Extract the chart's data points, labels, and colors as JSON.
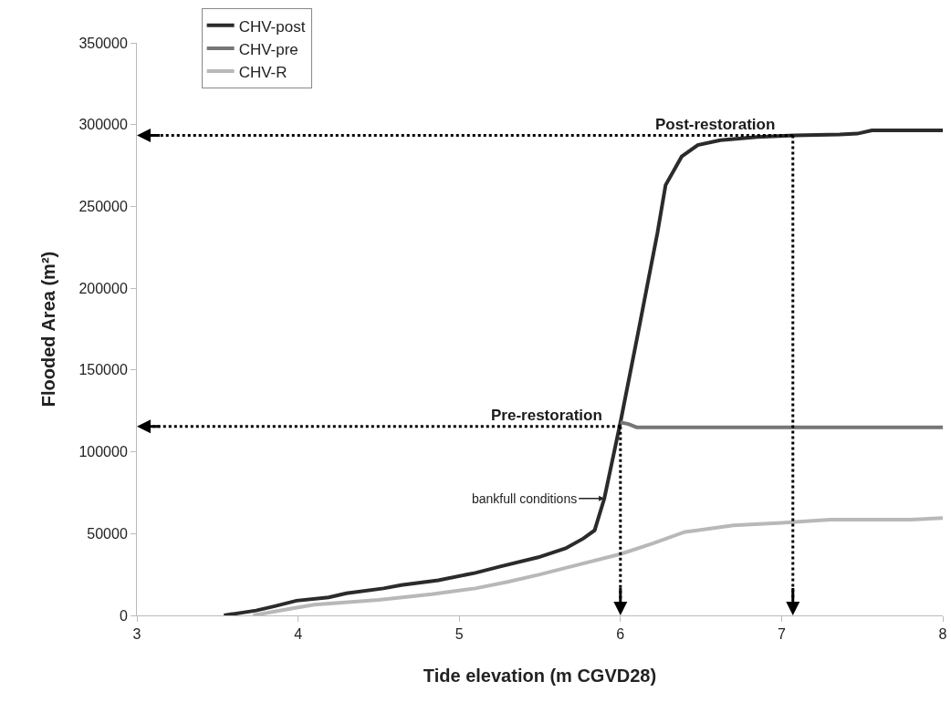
{
  "chart_data": {
    "type": "line",
    "xlabel": "Tide elevation (m CGVD28)",
    "ylabel": "Flooded Area (m²)",
    "xlim": [
      3,
      8
    ],
    "xticks": [
      3,
      4,
      5,
      6,
      7,
      8
    ],
    "ylim": [
      0,
      350000
    ],
    "yticks": [
      0,
      50000,
      100000,
      150000,
      200000,
      250000,
      300000,
      350000
    ],
    "grid": false,
    "legend": "top left",
    "marker": "none",
    "line_style": "solid",
    "series": [
      {
        "name": "CHV-post",
        "color": "#2b2b2b",
        "x": [
          3.54,
          3.74,
          3.85,
          3.99,
          4.19,
          4.3,
          4.53,
          4.64,
          4.87,
          5.1,
          5.26,
          5.49,
          5.66,
          5.77,
          5.84,
          5.9,
          6.0,
          6.11,
          6.23,
          6.28,
          6.38,
          6.48,
          6.62,
          6.85,
          7.08,
          7.36,
          7.47,
          7.56,
          8.0
        ],
        "values": [
          0,
          3000,
          5500,
          9000,
          11000,
          13500,
          16500,
          18500,
          21500,
          26000,
          30000,
          35500,
          41000,
          47000,
          52000,
          71500,
          118000,
          173000,
          234000,
          263000,
          280500,
          287500,
          290500,
          292500,
          293500,
          294000,
          294500,
          296500,
          296500
        ]
      },
      {
        "name": "CHV-pre",
        "color": "#767676",
        "x": [
          6.0,
          6.05,
          6.1,
          8.0
        ],
        "values": [
          118000,
          117000,
          115000,
          115000
        ]
      },
      {
        "name": "CHV-R",
        "color": "#b8b8b8",
        "x": [
          3.72,
          3.95,
          4.1,
          4.5,
          4.83,
          5.1,
          5.3,
          5.5,
          5.7,
          6.0,
          6.2,
          6.4,
          6.7,
          7.0,
          7.3,
          7.8,
          8.0
        ],
        "values": [
          0,
          4000,
          6500,
          9500,
          13000,
          16500,
          20500,
          25000,
          30000,
          37500,
          44000,
          51000,
          55000,
          56500,
          58500,
          58500,
          59500
        ]
      }
    ],
    "ref_lines": [
      {
        "axis": "y",
        "value": 293500,
        "label": "Post-restoration",
        "line_style": "dotted",
        "color": "#000000"
      },
      {
        "axis": "x",
        "value": 7.07,
        "line_style": "dotted",
        "color": "#000000"
      },
      {
        "axis": "y",
        "value": 115500,
        "label": "Pre-restoration",
        "line_style": "dotted",
        "color": "#000000"
      },
      {
        "axis": "x",
        "value": 6.0,
        "line_style": "dotted",
        "color": "#000000"
      }
    ],
    "annotations": [
      {
        "text": "bankfull conditions",
        "x": 5.9,
        "y": 71500
      }
    ]
  }
}
